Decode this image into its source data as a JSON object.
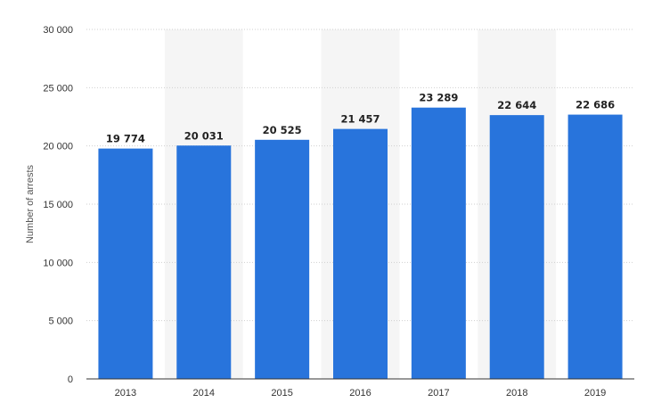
{
  "chart_data": {
    "type": "bar",
    "categories": [
      "2013",
      "2014",
      "2015",
      "2016",
      "2017",
      "2018",
      "2019"
    ],
    "values": [
      19774,
      20031,
      20525,
      21457,
      23289,
      22644,
      22686
    ],
    "value_labels": [
      "19 774",
      "20 031",
      "20 525",
      "21 457",
      "23 289",
      "22 644",
      "22 686"
    ],
    "ylabel": "Number of arrests",
    "ylim": [
      0,
      30000
    ],
    "yticks": [
      0,
      5000,
      10000,
      15000,
      20000,
      25000,
      30000
    ],
    "ytick_labels": [
      "0",
      "5 000",
      "10 000",
      "15 000",
      "20 000",
      "25 000",
      "30 000"
    ],
    "grid": true,
    "bar_color": "#2874dc",
    "band_color": "#f5f5f5"
  }
}
